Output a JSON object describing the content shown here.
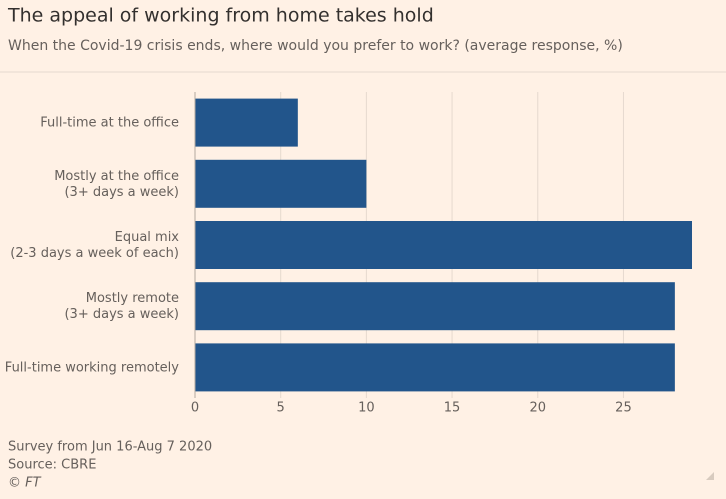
{
  "chart_data": {
    "type": "bar",
    "orientation": "horizontal",
    "title": "The appeal of working from home takes hold",
    "subtitle": "When the Covid-19 crisis ends, where would you prefer to work? (average response, %)",
    "categories": [
      "Full-time at the office",
      "Mostly at the office\n(3+ days a week)",
      "Equal mix\n(2-3 days a week of each)",
      "Mostly remote\n(3+ days a week)",
      "Full-time working remotely"
    ],
    "values": [
      6,
      10,
      29,
      28,
      28
    ],
    "color": "#22558b",
    "xlim": [
      0,
      29
    ],
    "xticks": [
      0,
      5,
      10,
      15,
      20,
      25
    ],
    "grid": true,
    "note": "Survey from Jun 16-Aug 7 2020",
    "source": "Source: CBRE",
    "credit": "© FT"
  }
}
